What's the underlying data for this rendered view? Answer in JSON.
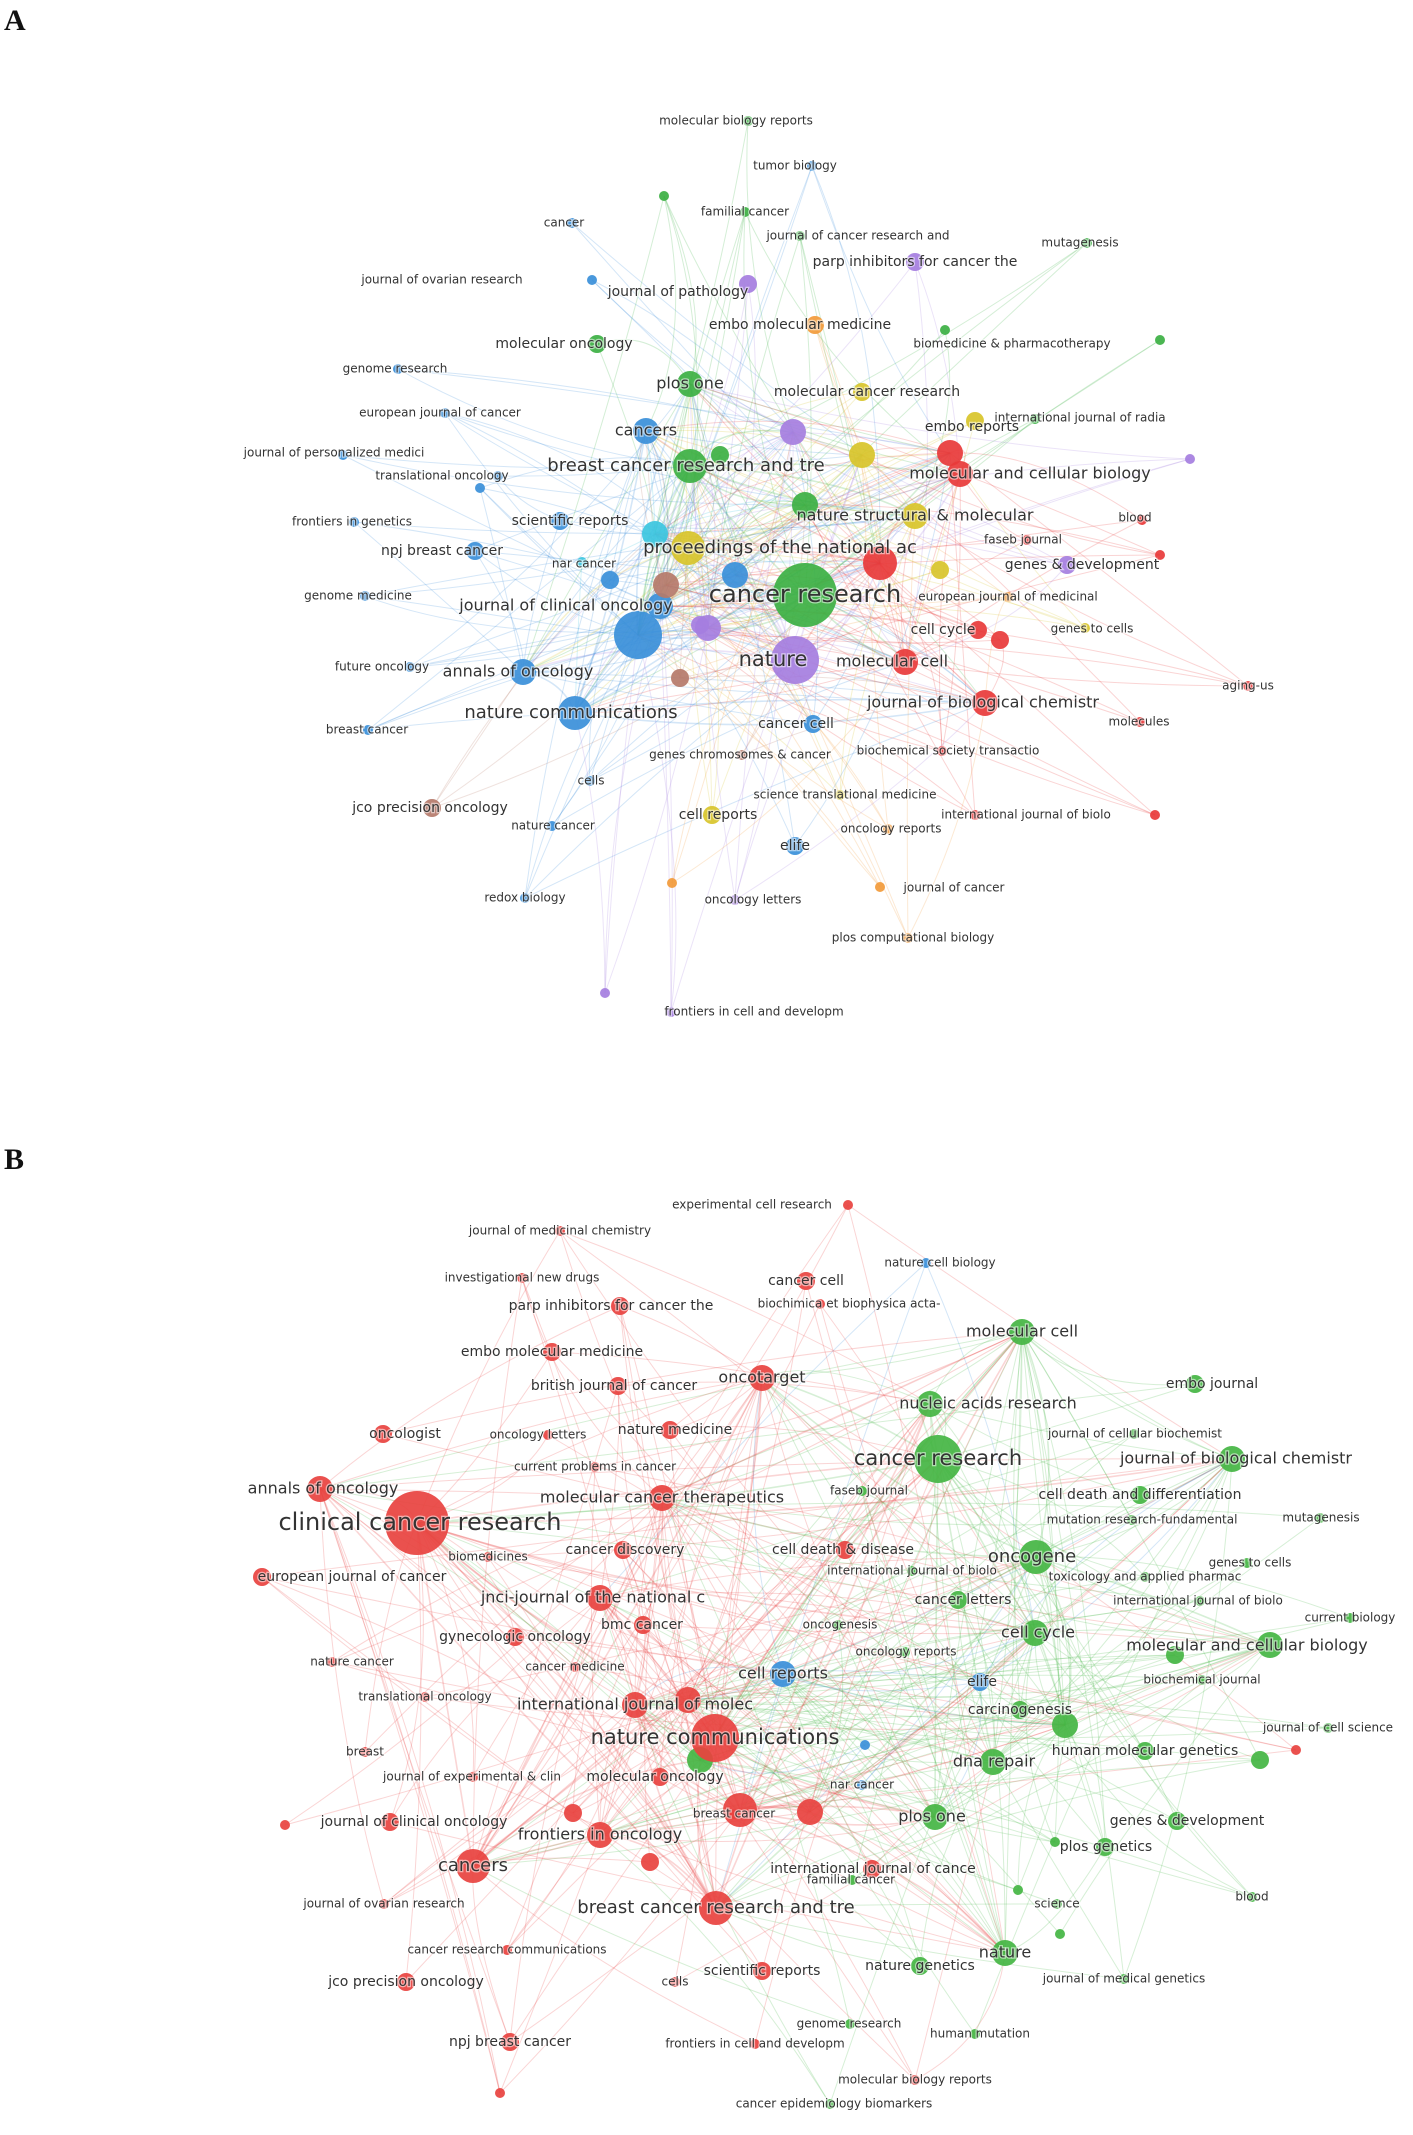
{
  "panels": {
    "a": {
      "letter": "A",
      "colors": {
        "green": "#3cb043",
        "blue": "#3a8fd9",
        "red": "#e83a3a",
        "purple": "#a57ee0",
        "yellow": "#d8c42a",
        "orange": "#f29a3a",
        "cyan": "#3cc6e0",
        "brown": "#b57a6a"
      },
      "nodes": [
        {
          "label": "molecular biology reports",
          "c": "green",
          "s": 1
        },
        {
          "label": "tumor biology",
          "c": "blue",
          "s": 1
        },
        {
          "label": "familial cancer",
          "c": "green",
          "s": 1
        },
        {
          "label": "cancer",
          "c": "blue",
          "s": 1
        },
        {
          "label": "journal of cancer research and",
          "c": "green",
          "s": 1
        },
        {
          "label": "parp inhibitors for cancer the",
          "c": "purple",
          "s": 2
        },
        {
          "label": "mutagenesis",
          "c": "green",
          "s": 1
        },
        {
          "label": "journal of ovarian research",
          "c": "blue",
          "s": 1
        },
        {
          "label": "journal of pathology",
          "c": "purple",
          "s": 2
        },
        {
          "label": "embo molecular medicine",
          "c": "orange",
          "s": 2
        },
        {
          "label": "biomedicine & pharmacotherapy",
          "c": "green",
          "s": 1
        },
        {
          "label": "molecular oncology",
          "c": "green",
          "s": 2
        },
        {
          "label": "genome research",
          "c": "blue",
          "s": 1
        },
        {
          "label": "plos one",
          "c": "green",
          "s": 3
        },
        {
          "label": "molecular cancer research",
          "c": "yellow",
          "s": 2
        },
        {
          "label": "european journal of cancer",
          "c": "blue",
          "s": 1
        },
        {
          "label": "cancers",
          "c": "blue",
          "s": 3
        },
        {
          "label": "embo reports",
          "c": "yellow",
          "s": 2
        },
        {
          "label": "international journal of radia",
          "c": "green",
          "s": 1
        },
        {
          "label": "journal of personalized medici",
          "c": "blue",
          "s": 1
        },
        {
          "label": "translational oncology",
          "c": "blue",
          "s": 1
        },
        {
          "label": "breast cancer research and tre",
          "c": "green",
          "s": 4
        },
        {
          "label": "molecular and cellular biology",
          "c": "red",
          "s": 3
        },
        {
          "label": "frontiers in genetics",
          "c": "blue",
          "s": 1
        },
        {
          "label": "scientific reports",
          "c": "blue",
          "s": 2
        },
        {
          "label": "nature structural & molecular",
          "c": "yellow",
          "s": 3
        },
        {
          "label": "blood",
          "c": "red",
          "s": 1
        },
        {
          "label": "npj breast cancer",
          "c": "blue",
          "s": 2
        },
        {
          "label": "nar cancer",
          "c": "cyan",
          "s": 1
        },
        {
          "label": "faseb journal",
          "c": "red",
          "s": 1
        },
        {
          "label": "proceedings of the national ac",
          "c": "yellow",
          "s": 4
        },
        {
          "label": "genes & development",
          "c": "purple",
          "s": 2
        },
        {
          "label": "genome medicine",
          "c": "blue",
          "s": 1
        },
        {
          "label": "journal of clinical oncology",
          "c": "blue",
          "s": 3
        },
        {
          "label": "cancer research",
          "c": "green",
          "s": 6
        },
        {
          "label": "european journal of medicinal",
          "c": "orange",
          "s": 1
        },
        {
          "label": "cell cycle",
          "c": "red",
          "s": 2
        },
        {
          "label": "genes to cells",
          "c": "yellow",
          "s": 1
        },
        {
          "label": "nature",
          "c": "purple",
          "s": 5
        },
        {
          "label": "molecular cell",
          "c": "red",
          "s": 3
        },
        {
          "label": "future oncology",
          "c": "blue",
          "s": 1
        },
        {
          "label": "annals of oncology",
          "c": "blue",
          "s": 3
        },
        {
          "label": "aging-us",
          "c": "red",
          "s": 1
        },
        {
          "label": "journal of biological chemistr",
          "c": "red",
          "s": 3
        },
        {
          "label": "molecules",
          "c": "red",
          "s": 1
        },
        {
          "label": "nature communications",
          "c": "blue",
          "s": 4
        },
        {
          "label": "breast cancer",
          "c": "blue",
          "s": 1
        },
        {
          "label": "cancer cell",
          "c": "blue",
          "s": 2
        },
        {
          "label": "genes chromosomes & cancer",
          "c": "brown",
          "s": 1
        },
        {
          "label": "biochemical society transactio",
          "c": "red",
          "s": 1
        },
        {
          "label": "cells",
          "c": "blue",
          "s": 1
        },
        {
          "label": "science translational medicine",
          "c": "yellow",
          "s": 1
        },
        {
          "label": "jco precision oncology",
          "c": "brown",
          "s": 2
        },
        {
          "label": "cell reports",
          "c": "yellow",
          "s": 2
        },
        {
          "label": "international journal of biolo",
          "c": "red",
          "s": 1
        },
        {
          "label": "nature cancer",
          "c": "blue",
          "s": 1
        },
        {
          "label": "oncology reports",
          "c": "orange",
          "s": 1
        },
        {
          "label": "elife",
          "c": "blue",
          "s": 2
        },
        {
          "label": "journal of cancer",
          "c": "orange",
          "s": 1
        },
        {
          "label": "redox biology",
          "c": "blue",
          "s": 1
        },
        {
          "label": "oncology letters",
          "c": "purple",
          "s": 1
        },
        {
          "label": "plos computational biology",
          "c": "orange",
          "s": 1
        },
        {
          "label": "frontiers in cell and developm",
          "c": "purple",
          "s": 1
        }
      ],
      "extra_nodes": [
        {
          "c": "blue",
          "s": 5
        },
        {
          "c": "purple",
          "s": 3
        },
        {
          "c": "cyan",
          "s": 3
        },
        {
          "c": "brown",
          "s": 3
        },
        {
          "c": "red",
          "s": 4
        },
        {
          "c": "blue",
          "s": 3
        },
        {
          "c": "green",
          "s": 3
        },
        {
          "c": "purple",
          "s": 3
        },
        {
          "c": "yellow",
          "s": 3
        },
        {
          "c": "red",
          "s": 3
        },
        {
          "c": "brown",
          "s": 2
        },
        {
          "c": "blue",
          "s": 2
        },
        {
          "c": "green",
          "s": 2
        },
        {
          "c": "purple",
          "s": 2
        },
        {
          "c": "yellow",
          "s": 2
        },
        {
          "c": "red",
          "s": 2
        },
        {
          "c": "green",
          "s": 1
        },
        {
          "c": "purple",
          "s": 1
        },
        {
          "c": "red",
          "s": 1
        },
        {
          "c": "orange",
          "s": 1
        },
        {
          "c": "blue",
          "s": 1
        },
        {
          "c": "green",
          "s": 1
        },
        {
          "c": "red",
          "s": 1
        },
        {
          "c": "purple",
          "s": 1
        }
      ]
    },
    "b": {
      "letter": "B",
      "colors": {
        "red": "#e8423f",
        "green": "#44b543",
        "blue": "#3a8fd9"
      },
      "nodes": [
        {
          "label": "experimental cell research",
          "c": "red",
          "s": 1
        },
        {
          "label": "journal of medicinal chemistry",
          "c": "red",
          "s": 1
        },
        {
          "label": "nature cell biology",
          "c": "blue",
          "s": 1
        },
        {
          "label": "investigational new drugs",
          "c": "red",
          "s": 1
        },
        {
          "label": "cancer cell",
          "c": "red",
          "s": 2
        },
        {
          "label": "parp inhibitors for cancer the",
          "c": "red",
          "s": 2
        },
        {
          "label": "biochimica et biophysica acta-",
          "c": "red",
          "s": 1
        },
        {
          "label": "molecular cell",
          "c": "green",
          "s": 3
        },
        {
          "label": "embo molecular medicine",
          "c": "red",
          "s": 2
        },
        {
          "label": "oncotarget",
          "c": "red",
          "s": 3
        },
        {
          "label": "embo journal",
          "c": "green",
          "s": 2
        },
        {
          "label": "british journal of cancer",
          "c": "red",
          "s": 2
        },
        {
          "label": "nucleic acids research",
          "c": "green",
          "s": 3
        },
        {
          "label": "oncologist",
          "c": "red",
          "s": 2
        },
        {
          "label": "oncology letters",
          "c": "red",
          "s": 1
        },
        {
          "label": "nature medicine",
          "c": "red",
          "s": 2
        },
        {
          "label": "journal of cellular biochemist",
          "c": "green",
          "s": 1
        },
        {
          "label": "cancer research",
          "c": "green",
          "s": 5
        },
        {
          "label": "journal of biological chemistr",
          "c": "green",
          "s": 3
        },
        {
          "label": "current problems in cancer",
          "c": "red",
          "s": 1
        },
        {
          "label": "annals of oncology",
          "c": "red",
          "s": 3
        },
        {
          "label": "molecular cancer therapeutics",
          "c": "red",
          "s": 3
        },
        {
          "label": "faseb journal",
          "c": "green",
          "s": 1
        },
        {
          "label": "cell death and differentiation",
          "c": "green",
          "s": 2
        },
        {
          "label": "clinical cancer research",
          "c": "red",
          "s": 6
        },
        {
          "label": "mutation research-fundamental",
          "c": "green",
          "s": 1
        },
        {
          "label": "mutagenesis",
          "c": "green",
          "s": 1
        },
        {
          "label": "cancer discovery",
          "c": "red",
          "s": 2
        },
        {
          "label": "cell death & disease",
          "c": "red",
          "s": 2
        },
        {
          "label": "oncogene",
          "c": "green",
          "s": 4
        },
        {
          "label": "biomedicines",
          "c": "red",
          "s": 1
        },
        {
          "label": "international journal of biolo",
          "c": "green",
          "s": 1
        },
        {
          "label": "genes to cells",
          "c": "green",
          "s": 1
        },
        {
          "label": "european journal of cancer",
          "c": "red",
          "s": 2
        },
        {
          "label": "toxicology and applied pharmac",
          "c": "green",
          "s": 1
        },
        {
          "label": "jnci-journal of the national c",
          "c": "red",
          "s": 3
        },
        {
          "label": "cancer letters",
          "c": "green",
          "s": 2
        },
        {
          "label": "international journal of biolo",
          "c": "green",
          "s": 1
        },
        {
          "label": "current biology",
          "c": "green",
          "s": 1
        },
        {
          "label": "bmc cancer",
          "c": "red",
          "s": 2
        },
        {
          "label": "oncogenesis",
          "c": "green",
          "s": 1
        },
        {
          "label": "cell cycle",
          "c": "green",
          "s": 3
        },
        {
          "label": "gynecologic oncology",
          "c": "red",
          "s": 2
        },
        {
          "label": "molecular and cellular biology",
          "c": "green",
          "s": 3
        },
        {
          "label": "oncology reports",
          "c": "green",
          "s": 1
        },
        {
          "label": "nature cancer",
          "c": "red",
          "s": 1
        },
        {
          "label": "cancer medicine",
          "c": "red",
          "s": 1
        },
        {
          "label": "cell reports",
          "c": "blue",
          "s": 3
        },
        {
          "label": "elife",
          "c": "blue",
          "s": 2
        },
        {
          "label": "biochemical journal",
          "c": "green",
          "s": 1
        },
        {
          "label": "translational oncology",
          "c": "red",
          "s": 1
        },
        {
          "label": "international journal of molec",
          "c": "red",
          "s": 3
        },
        {
          "label": "carcinogenesis",
          "c": "green",
          "s": 2
        },
        {
          "label": "journal of cell science",
          "c": "green",
          "s": 1
        },
        {
          "label": "breast",
          "c": "red",
          "s": 1
        },
        {
          "label": "nature communications",
          "c": "red",
          "s": 5
        },
        {
          "label": "human molecular genetics",
          "c": "green",
          "s": 2
        },
        {
          "label": "journal of experimental & clin",
          "c": "red",
          "s": 1
        },
        {
          "label": "dna repair",
          "c": "green",
          "s": 3
        },
        {
          "label": "molecular oncology",
          "c": "red",
          "s": 2
        },
        {
          "label": "nar cancer",
          "c": "blue",
          "s": 1
        },
        {
          "label": "journal of clinical oncology",
          "c": "red",
          "s": 2
        },
        {
          "label": "breast cancer",
          "c": "red",
          "s": 1
        },
        {
          "label": "plos one",
          "c": "green",
          "s": 3
        },
        {
          "label": "genes & development",
          "c": "green",
          "s": 2
        },
        {
          "label": "frontiers in oncology",
          "c": "red",
          "s": 3
        },
        {
          "label": "plos genetics",
          "c": "green",
          "s": 2
        },
        {
          "label": "cancers",
          "c": "red",
          "s": 4
        },
        {
          "label": "international journal of cance",
          "c": "red",
          "s": 2
        },
        {
          "label": "journal of ovarian research",
          "c": "red",
          "s": 1
        },
        {
          "label": "breast cancer research and tre",
          "c": "red",
          "s": 4
        },
        {
          "label": "science",
          "c": "green",
          "s": 1
        },
        {
          "label": "blood",
          "c": "green",
          "s": 1
        },
        {
          "label": "familial cancer",
          "c": "green",
          "s": 1
        },
        {
          "label": "cancer research communications",
          "c": "red",
          "s": 1
        },
        {
          "label": "nature",
          "c": "green",
          "s": 3
        },
        {
          "label": "nature genetics",
          "c": "green",
          "s": 2
        },
        {
          "label": "scientific reports",
          "c": "red",
          "s": 2
        },
        {
          "label": "jco precision oncology",
          "c": "red",
          "s": 2
        },
        {
          "label": "cells",
          "c": "red",
          "s": 1
        },
        {
          "label": "journal of medical genetics",
          "c": "green",
          "s": 1
        },
        {
          "label": "genome research",
          "c": "green",
          "s": 1
        },
        {
          "label": "npj breast cancer",
          "c": "red",
          "s": 2
        },
        {
          "label": "frontiers in cell and developm",
          "c": "red",
          "s": 1
        },
        {
          "label": "human mutation",
          "c": "green",
          "s": 1
        },
        {
          "label": "molecular biology reports",
          "c": "red",
          "s": 1
        },
        {
          "label": "cancer epidemiology biomarkers",
          "c": "green",
          "s": 1
        }
      ],
      "extra_nodes": [
        {
          "c": "red",
          "s": 4
        },
        {
          "c": "red",
          "s": 3
        },
        {
          "c": "red",
          "s": 3
        },
        {
          "c": "green",
          "s": 3
        },
        {
          "c": "green",
          "s": 3
        },
        {
          "c": "red",
          "s": 2
        },
        {
          "c": "red",
          "s": 2
        },
        {
          "c": "green",
          "s": 2
        },
        {
          "c": "green",
          "s": 2
        },
        {
          "c": "red",
          "s": 1
        },
        {
          "c": "red",
          "s": 1
        },
        {
          "c": "green",
          "s": 1
        },
        {
          "c": "green",
          "s": 1
        },
        {
          "c": "blue",
          "s": 1
        },
        {
          "c": "red",
          "s": 1
        },
        {
          "c": "green",
          "s": 1
        }
      ]
    }
  }
}
